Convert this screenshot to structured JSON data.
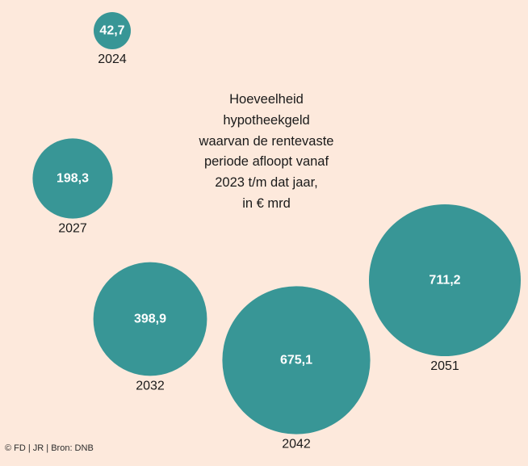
{
  "chart_data": {
    "type": "bubble",
    "title_lines": [
      "Hoeveelheid",
      "hypotheekgeld",
      "waarvan de rentevaste",
      "periode afloopt vanaf",
      "2023 t/m dat jaar,",
      "in € mrd"
    ],
    "categories": [
      "2024",
      "2027",
      "2032",
      "2042",
      "2051"
    ],
    "values": [
      42.7,
      198.3,
      398.9,
      675.1,
      711.2
    ],
    "value_labels": [
      "42,7",
      "198,3",
      "398,9",
      "675,1",
      "711,2"
    ],
    "unit": "€ mrd",
    "color": "#389696"
  },
  "source": "© FD | JR | Bron: DNB"
}
